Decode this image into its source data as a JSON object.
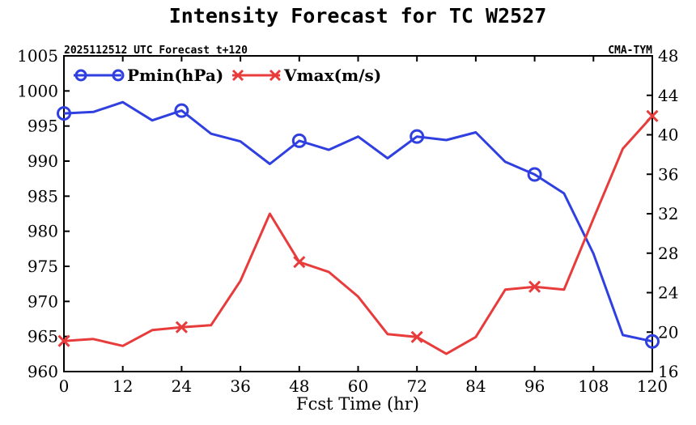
{
  "chart_data": {
    "type": "line",
    "title": "Intensity Forecast for TC W2527",
    "subtitle_left": "2025112512 UTC Forecast t+120",
    "subtitle_right": "CMA-TYM",
    "xlabel": "Fcst Time (hr)",
    "xlim": [
      0,
      120
    ],
    "x_ticks": [
      0,
      12,
      24,
      36,
      48,
      60,
      72,
      84,
      96,
      108,
      120
    ],
    "x_tick_labels": [
      "0",
      "12",
      "24",
      "36",
      "48",
      "60",
      "72",
      "84",
      "96",
      "108",
      "120"
    ],
    "left_axis": {
      "lim": [
        960,
        1005
      ],
      "ticks": [
        960,
        965,
        970,
        975,
        980,
        985,
        990,
        995,
        1000,
        1005
      ],
      "tick_labels": [
        "960",
        "965",
        "970",
        "975",
        "980",
        "985",
        "990",
        "995",
        "1000",
        "1005"
      ]
    },
    "right_axis": {
      "lim": [
        16,
        48
      ],
      "ticks": [
        16,
        20,
        24,
        28,
        32,
        36,
        40,
        44,
        48
      ],
      "tick_labels": [
        "16",
        "20",
        "24",
        "28",
        "32",
        "36",
        "40",
        "44",
        "48"
      ]
    },
    "x": [
      0,
      6,
      12,
      18,
      24,
      30,
      36,
      42,
      48,
      54,
      60,
      66,
      72,
      78,
      84,
      90,
      96,
      102,
      108,
      114,
      120
    ],
    "series": [
      {
        "name": "Pmin(hPa)",
        "axis": "left",
        "color": "#2f3fe0",
        "marker": "circle",
        "marker_x": [
          0,
          24,
          48,
          72,
          96,
          120
        ],
        "values": [
          996.8,
          997.0,
          998.4,
          995.8,
          997.2,
          993.9,
          992.8,
          989.6,
          992.9,
          991.6,
          993.5,
          990.4,
          993.5,
          993.0,
          994.1,
          989.9,
          988.1,
          985.4,
          976.8,
          965.2,
          964.3
        ]
      },
      {
        "name": "Vmax(m/s)",
        "axis": "right",
        "color": "#e83c3c",
        "marker": "x",
        "marker_x": [
          0,
          24,
          48,
          72,
          96,
          120
        ],
        "values": [
          19.1,
          19.3,
          18.6,
          20.2,
          20.5,
          20.7,
          25.2,
          32.0,
          27.1,
          26.1,
          23.6,
          19.8,
          19.5,
          17.8,
          19.5,
          24.3,
          24.6,
          24.3,
          31.5,
          38.6,
          41.9
        ]
      }
    ]
  }
}
